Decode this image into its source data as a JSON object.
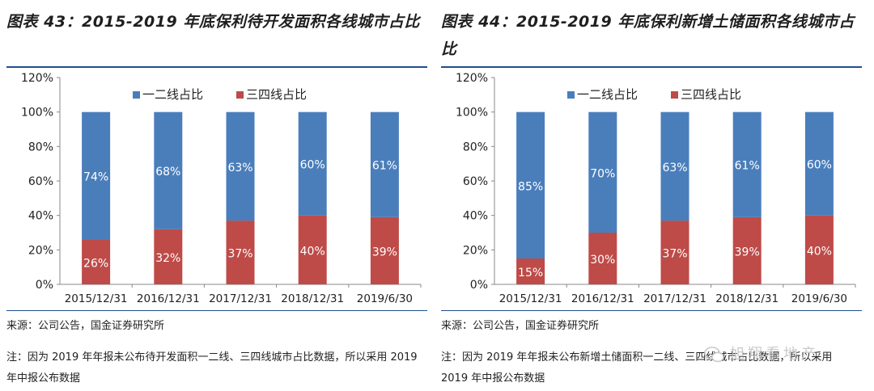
{
  "left": {
    "title": "图表 43：2015-2019 年底保利待开发面积各线城市占比",
    "source": "来源：公司公告，国金证券研究所",
    "note": "注：因为 2019 年年报未公布待开发面积一二线、三四线城市占比数据，所以采用 2019 年中报公布数据"
  },
  "right": {
    "title": "图表 44：2015-2019 年底保利新增土储面积各线城市占比",
    "source": "来源：公司公告，国金证券研究所",
    "note": "注：因为 2019 年年报未公布新增土储面积一二线、三四线城市占比数据，所以采用 2019 年中报公布数据"
  },
  "watermark": "旭翔看地产",
  "colors": {
    "first_tier": "#4a7ebb",
    "third_tier": "#be4b48",
    "rule": "#1f4f8f"
  },
  "chart_data": [
    {
      "type": "bar",
      "stacked": true,
      "categories": [
        "2015/12/31",
        "2016/12/31",
        "2017/12/31",
        "2018/12/31",
        "2019/6/30"
      ],
      "series": [
        {
          "name": "三四线占比",
          "values": [
            26,
            32,
            37,
            40,
            39
          ],
          "labels": [
            "26%",
            "32%",
            "37%",
            "40%",
            "39%"
          ]
        },
        {
          "name": "一二线占比",
          "values": [
            74,
            68,
            63,
            60,
            61
          ],
          "labels": [
            "74%",
            "68%",
            "63%",
            "60%",
            "61%"
          ]
        }
      ],
      "yticks": [
        "0%",
        "20%",
        "40%",
        "60%",
        "80%",
        "100%",
        "120%"
      ],
      "ylim": [
        0,
        120
      ],
      "legend": "top",
      "grid": false
    },
    {
      "type": "bar",
      "stacked": true,
      "categories": [
        "2015/12/31",
        "2016/12/31",
        "2017/12/31",
        "2018/12/31",
        "2019/6/30"
      ],
      "series": [
        {
          "name": "三四线占比",
          "values": [
            15,
            30,
            37,
            39,
            40
          ],
          "labels": [
            "15%",
            "30%",
            "37%",
            "39%",
            "40%"
          ]
        },
        {
          "name": "一二线占比",
          "values": [
            85,
            70,
            63,
            61,
            60
          ],
          "labels": [
            "85%",
            "70%",
            "63%",
            "61%",
            "60%"
          ]
        }
      ],
      "yticks": [
        "0%",
        "20%",
        "40%",
        "60%",
        "80%",
        "100%",
        "120%"
      ],
      "ylim": [
        0,
        120
      ],
      "legend": "top",
      "grid": false
    }
  ]
}
